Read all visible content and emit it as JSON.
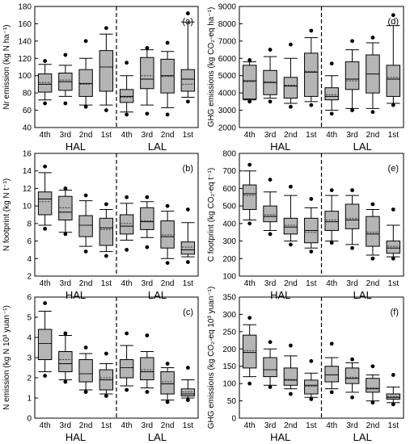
{
  "figure": {
    "group_labels": [
      "HAL",
      "LAL"
    ]
  },
  "chart_data": [
    {
      "panel": "(a)",
      "type": "boxplot",
      "ylabel": "Nr emission (kg N ha⁻¹)",
      "ylim": [
        40,
        180
      ],
      "yticks": [
        40,
        60,
        80,
        100,
        120,
        140,
        160,
        180
      ],
      "categories": [
        "4th",
        "3rd",
        "2nd",
        "1st",
        "4th",
        "3rd",
        "2nd",
        "1st"
      ],
      "groups": [
        "HAL",
        "HAL",
        "HAL",
        "HAL",
        "LAL",
        "LAL",
        "LAL",
        "LAL"
      ],
      "boxes": [
        {
          "whisker_low": 72,
          "q1": 81,
          "median": 90,
          "mean": 92,
          "q3": 102,
          "whisker_high": 113,
          "outliers": [
            68,
            117
          ]
        },
        {
          "whisker_low": 76,
          "q1": 83,
          "median": 93,
          "mean": 95,
          "q3": 103,
          "whisker_high": 112,
          "outliers": [
            68,
            124
          ]
        },
        {
          "whisker_low": 66,
          "q1": 76,
          "median": 91,
          "mean": 90,
          "q3": 107,
          "whisker_high": 120,
          "outliers": [
            64,
            140
          ]
        },
        {
          "whisker_low": 66,
          "q1": 82,
          "median": 110,
          "mean": 110,
          "q3": 129,
          "whisker_high": 148,
          "outliers": [
            60,
            155
          ]
        },
        {
          "whisker_low": 58,
          "q1": 69,
          "median": 76,
          "mean": 75,
          "q3": 84,
          "whisker_high": 100,
          "outliers": [
            55,
            115
          ]
        },
        {
          "whisker_low": 66,
          "q1": 85,
          "median": 96,
          "mean": 100,
          "q3": 121,
          "whisker_high": 130,
          "outliers": [
            56,
            132
          ]
        },
        {
          "whisker_low": 63,
          "q1": 80,
          "median": 100,
          "mean": 99,
          "q3": 119,
          "whisker_high": 128,
          "outliers": [
            55,
            138
          ]
        },
        {
          "whisker_low": 75,
          "q1": 82,
          "median": 96,
          "mean": 90,
          "q3": 107,
          "whisker_high": 162,
          "outliers": [
            70,
            172
          ]
        }
      ]
    },
    {
      "panel": "(d)",
      "type": "boxplot",
      "ylabel": "GHG emissions (kg CO₂-eq ha⁻¹)",
      "ylim": [
        2000,
        9000
      ],
      "yticks": [
        2000,
        3000,
        4000,
        5000,
        6000,
        7000,
        8000,
        9000
      ],
      "categories": [
        "4th",
        "3rd",
        "2nd",
        "1st",
        "4th",
        "3rd",
        "2nd",
        "1st"
      ],
      "groups": [
        "HAL",
        "HAL",
        "HAL",
        "HAL",
        "LAL",
        "LAL",
        "LAL",
        "LAL"
      ],
      "boxes": [
        {
          "whisker_low": 3600,
          "q1": 3650,
          "median": 4700,
          "mean": 4650,
          "q3": 5600,
          "whisker_high": 5800,
          "outliers": [
            3500,
            5900
          ]
        },
        {
          "whisker_low": 3700,
          "q1": 3900,
          "median": 4600,
          "mean": 4650,
          "q3": 5300,
          "whisker_high": 6100,
          "outliers": [
            3500,
            6500
          ]
        },
        {
          "whisker_low": 3400,
          "q1": 3700,
          "median": 4400,
          "mean": 4450,
          "q3": 4900,
          "whisker_high": 6000,
          "outliers": [
            3200,
            6800
          ]
        },
        {
          "whisker_low": 3500,
          "q1": 3800,
          "median": 5200,
          "mean": 5250,
          "q3": 6300,
          "whisker_high": 7200,
          "outliers": [
            3300,
            7600
          ]
        },
        {
          "whisker_low": 3000,
          "q1": 3600,
          "median": 3800,
          "mean": 3900,
          "q3": 4300,
          "whisker_high": 5000,
          "outliers": [
            2800,
            5700
          ]
        },
        {
          "whisker_low": 3100,
          "q1": 4200,
          "median": 4800,
          "mean": 4700,
          "q3": 5800,
          "whisker_high": 6500,
          "outliers": [
            3000,
            7000
          ]
        },
        {
          "whisker_low": 3100,
          "q1": 4000,
          "median": 5100,
          "mean": 5100,
          "q3": 6200,
          "whisker_high": 6900,
          "outliers": [
            2900,
            7200
          ]
        },
        {
          "whisker_low": 3400,
          "q1": 3800,
          "median": 4800,
          "mean": 4900,
          "q3": 5600,
          "whisker_high": 7900,
          "outliers": [
            3300,
            8500
          ]
        }
      ]
    },
    {
      "panel": "(b)",
      "type": "boxplot",
      "ylabel": "N footprint (kg N t⁻¹)",
      "ylim": [
        2,
        16
      ],
      "yticks": [
        2,
        4,
        6,
        8,
        10,
        12,
        14,
        16
      ],
      "categories": [
        "4th",
        "3rd",
        "2nd",
        "1st",
        "4th",
        "3rd",
        "2nd",
        "1st"
      ],
      "groups": [
        "HAL",
        "HAL",
        "HAL",
        "HAL",
        "LAL",
        "LAL",
        "LAL",
        "LAL"
      ],
      "boxes": [
        {
          "whisker_low": 7.8,
          "q1": 9.0,
          "median": 10.8,
          "mean": 10.5,
          "q3": 11.6,
          "whisker_high": 13.8,
          "outliers": [
            7.4,
            14.5
          ]
        },
        {
          "whisker_low": 7.0,
          "q1": 8.4,
          "median": 9.3,
          "mean": 9.8,
          "q3": 11.1,
          "whisker_high": 11.8,
          "outliers": [
            6.8,
            12.0
          ]
        },
        {
          "whisker_low": 5.4,
          "q1": 6.5,
          "median": 7.8,
          "mean": 7.8,
          "q3": 8.9,
          "whisker_high": 10.6,
          "outliers": [
            4.8,
            11.2
          ]
        },
        {
          "whisker_low": 4.8,
          "q1": 5.5,
          "median": 7.5,
          "mean": 7.3,
          "q3": 8.6,
          "whisker_high": 9.6,
          "outliers": [
            4.3,
            10.2
          ]
        },
        {
          "whisker_low": 6.1,
          "q1": 6.8,
          "median": 7.7,
          "mean": 8.0,
          "q3": 9.0,
          "whisker_high": 10.3,
          "outliers": [
            5.0,
            11.0
          ]
        },
        {
          "whisker_low": 6.4,
          "q1": 7.3,
          "median": 8.2,
          "mean": 8.3,
          "q3": 9.8,
          "whisker_high": 10.5,
          "outliers": [
            5.3,
            11.0
          ]
        },
        {
          "whisker_low": 4.0,
          "q1": 5.2,
          "median": 6.5,
          "mean": 6.7,
          "q3": 8.3,
          "whisker_high": 9.4,
          "outliers": [
            3.5,
            10.0
          ]
        },
        {
          "whisker_low": 4.2,
          "q1": 4.5,
          "median": 5.0,
          "mean": 5.3,
          "q3": 5.9,
          "whisker_high": 8.1,
          "outliers": [
            3.6,
            9.6
          ]
        }
      ]
    },
    {
      "panel": "(e)",
      "type": "boxplot",
      "ylabel": "C footprint (kg CO₂-eq t⁻¹)",
      "ylim": [
        100,
        800
      ],
      "yticks": [
        100,
        200,
        300,
        400,
        500,
        600,
        700,
        800
      ],
      "categories": [
        "4th",
        "3rd",
        "2nd",
        "1st",
        "4th",
        "3rd",
        "2nd",
        "1st"
      ],
      "groups": [
        "HAL",
        "HAL",
        "HAL",
        "HAL",
        "LAL",
        "LAL",
        "LAL",
        "LAL"
      ],
      "boxes": [
        {
          "whisker_low": 420,
          "q1": 480,
          "median": 570,
          "mean": 560,
          "q3": 620,
          "whisker_high": 700,
          "outliers": [
            400,
            735
          ]
        },
        {
          "whisker_low": 360,
          "q1": 410,
          "median": 440,
          "mean": 450,
          "q3": 500,
          "whisker_high": 580,
          "outliers": [
            340,
            650
          ]
        },
        {
          "whisker_low": 300,
          "q1": 340,
          "median": 380,
          "mean": 390,
          "q3": 430,
          "whisker_high": 560,
          "outliers": [
            280,
            610
          ]
        },
        {
          "whisker_low": 260,
          "q1": 290,
          "median": 360,
          "mean": 350,
          "q3": 430,
          "whisker_high": 490,
          "outliers": [
            240,
            540
          ]
        },
        {
          "whisker_low": 300,
          "q1": 360,
          "median": 410,
          "mean": 420,
          "q3": 470,
          "whisker_high": 560,
          "outliers": [
            290,
            590
          ]
        },
        {
          "whisker_low": 280,
          "q1": 370,
          "median": 420,
          "mean": 430,
          "q3": 510,
          "whisker_high": 560,
          "outliers": [
            260,
            590
          ]
        },
        {
          "whisker_low": 220,
          "q1": 270,
          "median": 340,
          "mean": 350,
          "q3": 440,
          "whisker_high": 480,
          "outliers": [
            200,
            510
          ]
        },
        {
          "whisker_low": 210,
          "q1": 230,
          "median": 260,
          "mean": 270,
          "q3": 300,
          "whisker_high": 390,
          "outliers": [
            200,
            480
          ]
        }
      ]
    },
    {
      "panel": "(c)",
      "type": "boxplot",
      "ylabel": "N emission (kg N 10³ yuan⁻¹)",
      "ylim": [
        0,
        6
      ],
      "yticks": [
        0,
        1,
        2,
        3,
        4,
        5,
        6
      ],
      "categories": [
        "4th",
        "3rd",
        "2nd",
        "1st",
        "4th",
        "3rd",
        "2nd",
        "1st"
      ],
      "groups": [
        "HAL",
        "HAL",
        "HAL",
        "HAL",
        "LAL",
        "LAL",
        "LAL",
        "LAL"
      ],
      "boxes": [
        {
          "whisker_low": 2.3,
          "q1": 2.9,
          "median": 3.7,
          "mean": 3.7,
          "q3": 4.4,
          "whisker_high": 5.3,
          "outliers": [
            2.1,
            5.7
          ]
        },
        {
          "whisker_low": 1.9,
          "q1": 2.3,
          "median": 2.7,
          "mean": 2.9,
          "q3": 3.3,
          "whisker_high": 4.1,
          "outliers": [
            1.8,
            4.2
          ]
        },
        {
          "whisker_low": 1.4,
          "q1": 1.8,
          "median": 2.2,
          "mean": 2.2,
          "q3": 2.9,
          "whisker_high": 3.2,
          "outliers": [
            1.3,
            3.5
          ]
        },
        {
          "whisker_low": 1.2,
          "q1": 1.4,
          "median": 1.9,
          "mean": 2.0,
          "q3": 2.4,
          "whisker_high": 2.7,
          "outliers": [
            1.1,
            3.2
          ]
        },
        {
          "whisker_low": 1.6,
          "q1": 2.0,
          "median": 2.5,
          "mean": 2.5,
          "q3": 2.9,
          "whisker_high": 3.6,
          "outliers": [
            1.4,
            4.2
          ]
        },
        {
          "whisker_low": 1.5,
          "q1": 1.9,
          "median": 2.3,
          "mean": 2.4,
          "q3": 3.0,
          "whisker_high": 3.3,
          "outliers": [
            1.3,
            4.1
          ]
        },
        {
          "whisker_low": 0.9,
          "q1": 1.2,
          "median": 1.7,
          "mean": 1.8,
          "q3": 2.3,
          "whisker_high": 2.5,
          "outliers": [
            0.8,
            2.7
          ]
        },
        {
          "whisker_low": 1.0,
          "q1": 1.1,
          "median": 1.2,
          "mean": 1.3,
          "q3": 1.45,
          "whisker_high": 1.9,
          "outliers": [
            0.9,
            2.5
          ]
        }
      ]
    },
    {
      "panel": "(f)",
      "type": "boxplot",
      "ylabel": "GHG emissions (kg CO₂-eq 10³ yuan⁻¹)",
      "ylim": [
        0,
        350
      ],
      "yticks": [
        0,
        50,
        100,
        150,
        200,
        250,
        300,
        350
      ],
      "categories": [
        "4th",
        "3rd",
        "2nd",
        "1st",
        "4th",
        "3rd",
        "2nd",
        "1st"
      ],
      "groups": [
        "HAL",
        "HAL",
        "HAL",
        "HAL",
        "LAL",
        "LAL",
        "LAL",
        "LAL"
      ],
      "boxes": [
        {
          "whisker_low": 120,
          "q1": 145,
          "median": 190,
          "mean": 195,
          "q3": 240,
          "whisker_high": 270,
          "outliers": [
            100,
            290
          ]
        },
        {
          "whisker_low": 95,
          "q1": 120,
          "median": 140,
          "mean": 140,
          "q3": 175,
          "whisker_high": 200,
          "outliers": [
            90,
            220
          ]
        },
        {
          "whisker_low": 85,
          "q1": 95,
          "median": 110,
          "mean": 112,
          "q3": 145,
          "whisker_high": 180,
          "outliers": [
            70,
            210
          ]
        },
        {
          "whisker_low": 60,
          "q1": 70,
          "median": 95,
          "mean": 92,
          "q3": 110,
          "whisker_high": 130,
          "outliers": [
            55,
            165
          ]
        },
        {
          "whisker_low": 85,
          "q1": 105,
          "median": 125,
          "mean": 125,
          "q3": 150,
          "whisker_high": 175,
          "outliers": [
            75,
            215
          ]
        },
        {
          "whisker_low": 75,
          "q1": 100,
          "median": 115,
          "mean": 118,
          "q3": 145,
          "whisker_high": 160,
          "outliers": [
            60,
            170
          ]
        },
        {
          "whisker_low": 50,
          "q1": 75,
          "median": 85,
          "mean": 88,
          "q3": 115,
          "whisker_high": 125,
          "outliers": [
            45,
            150
          ]
        },
        {
          "whisker_low": 45,
          "q1": 55,
          "median": 60,
          "mean": 62,
          "q3": 70,
          "whisker_high": 90,
          "outliers": [
            40,
            125
          ]
        }
      ]
    }
  ]
}
